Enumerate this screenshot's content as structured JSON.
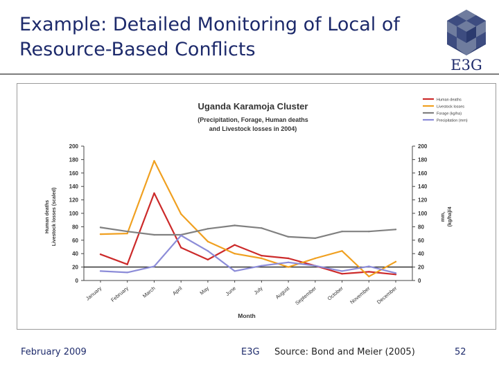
{
  "slide": {
    "title_line1": "Example: Detailed Monitoring of Local of",
    "title_line2": "Resource-Based Conflicts",
    "logo_text": "E3G"
  },
  "footer": {
    "date": "February 2009",
    "org": "E3G",
    "source": "Source: Bond and Meier (2005)",
    "page_number": "52"
  },
  "colors": {
    "title_text": "#1d2a6b",
    "logo_dark": "#2b3a6e",
    "logo_mid": "#6f7c9e",
    "human_deaths": "#cc2a2a",
    "livestock_losses": "#f0a020",
    "forage": "#808080",
    "precipitation": "#8c8cd8"
  },
  "chart_data": {
    "type": "line",
    "title": "Uganda Karamoja Cluster",
    "subtitle_line1": "(Precipitation, Forage, Human deaths",
    "subtitle_line2": "and Livestock losses in 2004)",
    "xlabel": "Month",
    "ylabel_left_line1": "Human deaths",
    "ylabel_left_line2": "Livestock losses (scaled)",
    "ylabel_right_line1": "mm,",
    "ylabel_right_line2": "(kg/ha)/4",
    "ylim": [
      0,
      200
    ],
    "yticks": [
      0,
      20,
      40,
      60,
      80,
      100,
      120,
      140,
      160,
      180,
      200
    ],
    "grid": false,
    "reference_line_y": 20,
    "legend_position": "top-right",
    "categories": [
      "January",
      "February",
      "March",
      "April",
      "May",
      "June",
      "July",
      "August",
      "September",
      "October",
      "November",
      "December"
    ],
    "series": [
      {
        "name": "Human deaths",
        "color_key": "human_deaths",
        "values": [
          39,
          24,
          130,
          49,
          31,
          53,
          37,
          33,
          22,
          10,
          13,
          9
        ]
      },
      {
        "name": "Livestock losses",
        "color_key": "livestock_losses",
        "values": [
          69,
          70,
          178,
          99,
          58,
          40,
          33,
          20,
          33,
          44,
          6,
          28
        ]
      },
      {
        "name": "Forage (kg/ha)",
        "color_key": "forage",
        "values": [
          79,
          73,
          68,
          68,
          77,
          82,
          78,
          65,
          63,
          73,
          73,
          76
        ]
      },
      {
        "name": "Precipitation (mm)",
        "color_key": "precipitation",
        "values": [
          14,
          12,
          21,
          67,
          44,
          14,
          22,
          27,
          22,
          14,
          21,
          11
        ]
      }
    ]
  }
}
